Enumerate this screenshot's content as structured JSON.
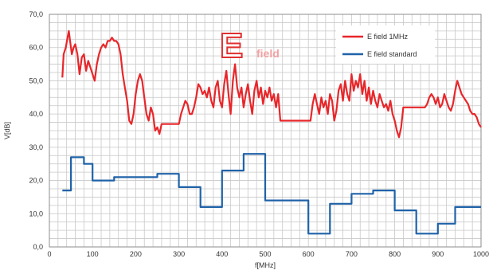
{
  "chart_data": {
    "type": "line",
    "title": "",
    "annotation": {
      "big": "E",
      "small": "field"
    },
    "xlabel": "f[MHz]",
    "ylabel": "V[dB]",
    "xlim": [
      0,
      1000
    ],
    "ylim": [
      0,
      70
    ],
    "x_ticks": [
      0,
      100,
      200,
      300,
      400,
      500,
      600,
      700,
      800,
      900,
      1000
    ],
    "x_tick_labels": [
      "0",
      "100",
      "200",
      "300",
      "400",
      "500",
      "600",
      "700",
      "800",
      "900",
      "1000"
    ],
    "y_ticks": [
      0,
      10,
      20,
      30,
      40,
      50,
      60,
      70
    ],
    "y_tick_labels": [
      "0,0",
      "10,0",
      "20,0",
      "30,0",
      "40,0",
      "50,0",
      "60,0",
      "70,0"
    ],
    "grid": true,
    "legend_position": "top-right",
    "series": [
      {
        "name": "E field 1MHz",
        "color": "#e8262a",
        "points": [
          [
            30,
            51
          ],
          [
            33,
            58
          ],
          [
            38,
            60
          ],
          [
            42,
            63
          ],
          [
            45,
            65
          ],
          [
            48,
            62
          ],
          [
            52,
            58
          ],
          [
            56,
            60
          ],
          [
            60,
            61
          ],
          [
            65,
            58
          ],
          [
            70,
            52
          ],
          [
            75,
            57
          ],
          [
            80,
            58
          ],
          [
            85,
            53
          ],
          [
            90,
            56
          ],
          [
            95,
            54
          ],
          [
            100,
            52
          ],
          [
            105,
            50
          ],
          [
            110,
            55
          ],
          [
            115,
            58
          ],
          [
            120,
            60
          ],
          [
            125,
            61
          ],
          [
            130,
            60
          ],
          [
            135,
            62
          ],
          [
            140,
            62
          ],
          [
            145,
            63
          ],
          [
            150,
            62
          ],
          [
            155,
            62
          ],
          [
            160,
            61
          ],
          [
            165,
            58
          ],
          [
            170,
            52
          ],
          [
            175,
            48
          ],
          [
            180,
            44
          ],
          [
            185,
            38
          ],
          [
            190,
            37
          ],
          [
            195,
            40
          ],
          [
            200,
            46
          ],
          [
            205,
            50
          ],
          [
            210,
            52
          ],
          [
            215,
            50
          ],
          [
            220,
            45
          ],
          [
            225,
            40
          ],
          [
            230,
            38
          ],
          [
            235,
            42
          ],
          [
            240,
            40
          ],
          [
            245,
            35
          ],
          [
            250,
            36
          ],
          [
            255,
            34
          ],
          [
            260,
            37
          ],
          [
            280,
            37
          ],
          [
            300,
            37
          ],
          [
            305,
            40
          ],
          [
            310,
            42
          ],
          [
            315,
            44
          ],
          [
            320,
            43
          ],
          [
            325,
            40
          ],
          [
            330,
            40
          ],
          [
            335,
            42
          ],
          [
            340,
            45
          ],
          [
            345,
            49
          ],
          [
            350,
            48
          ],
          [
            355,
            46
          ],
          [
            360,
            47
          ],
          [
            365,
            45
          ],
          [
            370,
            48
          ],
          [
            375,
            44
          ],
          [
            380,
            42
          ],
          [
            385,
            48
          ],
          [
            390,
            50
          ],
          [
            395,
            44
          ],
          [
            400,
            42
          ],
          [
            405,
            49
          ],
          [
            410,
            53
          ],
          [
            415,
            46
          ],
          [
            420,
            40
          ],
          [
            425,
            50
          ],
          [
            430,
            55
          ],
          [
            435,
            48
          ],
          [
            440,
            45
          ],
          [
            445,
            48
          ],
          [
            450,
            42
          ],
          [
            455,
            46
          ],
          [
            460,
            49
          ],
          [
            465,
            44
          ],
          [
            470,
            40
          ],
          [
            475,
            47
          ],
          [
            480,
            50
          ],
          [
            485,
            45
          ],
          [
            490,
            48
          ],
          [
            495,
            43
          ],
          [
            500,
            47
          ],
          [
            505,
            45
          ],
          [
            510,
            48
          ],
          [
            515,
            44
          ],
          [
            520,
            46
          ],
          [
            525,
            42
          ],
          [
            530,
            46
          ],
          [
            535,
            38
          ],
          [
            560,
            38
          ],
          [
            590,
            38
          ],
          [
            605,
            38
          ],
          [
            610,
            43
          ],
          [
            615,
            46
          ],
          [
            620,
            43
          ],
          [
            625,
            40
          ],
          [
            630,
            45
          ],
          [
            635,
            42
          ],
          [
            640,
            44
          ],
          [
            645,
            40
          ],
          [
            650,
            46
          ],
          [
            655,
            44
          ],
          [
            660,
            38
          ],
          [
            665,
            41
          ],
          [
            670,
            47
          ],
          [
            675,
            49
          ],
          [
            680,
            44
          ],
          [
            685,
            50
          ],
          [
            690,
            46
          ],
          [
            695,
            44
          ],
          [
            700,
            52
          ],
          [
            705,
            47
          ],
          [
            710,
            50
          ],
          [
            715,
            48
          ],
          [
            720,
            52
          ],
          [
            725,
            46
          ],
          [
            730,
            50
          ],
          [
            735,
            44
          ],
          [
            740,
            48
          ],
          [
            745,
            43
          ],
          [
            750,
            47
          ],
          [
            755,
            44
          ],
          [
            760,
            42
          ],
          [
            765,
            46
          ],
          [
            770,
            44
          ],
          [
            775,
            42
          ],
          [
            780,
            43
          ],
          [
            785,
            41
          ],
          [
            790,
            44
          ],
          [
            795,
            40
          ],
          [
            800,
            38
          ],
          [
            805,
            35
          ],
          [
            810,
            33
          ],
          [
            815,
            36
          ],
          [
            820,
            42
          ],
          [
            850,
            42
          ],
          [
            870,
            42
          ],
          [
            875,
            43
          ],
          [
            880,
            45
          ],
          [
            885,
            46
          ],
          [
            890,
            45
          ],
          [
            895,
            43
          ],
          [
            900,
            45
          ],
          [
            905,
            42
          ],
          [
            910,
            43
          ],
          [
            915,
            46
          ],
          [
            920,
            44
          ],
          [
            925,
            42
          ],
          [
            930,
            41
          ],
          [
            935,
            43
          ],
          [
            940,
            47
          ],
          [
            945,
            50
          ],
          [
            950,
            48
          ],
          [
            955,
            46
          ],
          [
            960,
            45
          ],
          [
            965,
            44
          ],
          [
            970,
            43
          ],
          [
            975,
            41
          ],
          [
            980,
            40
          ],
          [
            985,
            40
          ],
          [
            990,
            39
          ],
          [
            995,
            37
          ],
          [
            1000,
            36
          ]
        ]
      },
      {
        "name": "E field standard",
        "color": "#1f62a8",
        "points": [
          [
            30,
            17
          ],
          [
            50,
            17
          ],
          [
            50,
            27
          ],
          [
            80,
            27
          ],
          [
            80,
            25
          ],
          [
            100,
            25
          ],
          [
            100,
            20
          ],
          [
            150,
            20
          ],
          [
            150,
            21
          ],
          [
            250,
            21
          ],
          [
            250,
            22
          ],
          [
            300,
            22
          ],
          [
            300,
            18
          ],
          [
            350,
            18
          ],
          [
            350,
            12
          ],
          [
            400,
            12
          ],
          [
            400,
            23
          ],
          [
            450,
            23
          ],
          [
            450,
            28
          ],
          [
            500,
            28
          ],
          [
            500,
            14
          ],
          [
            600,
            14
          ],
          [
            600,
            4
          ],
          [
            650,
            4
          ],
          [
            650,
            13
          ],
          [
            700,
            13
          ],
          [
            700,
            16
          ],
          [
            750,
            16
          ],
          [
            750,
            17
          ],
          [
            800,
            17
          ],
          [
            800,
            11
          ],
          [
            850,
            11
          ],
          [
            850,
            4
          ],
          [
            900,
            4
          ],
          [
            900,
            7
          ],
          [
            940,
            7
          ],
          [
            940,
            12
          ],
          [
            1000,
            12
          ]
        ]
      }
    ]
  }
}
